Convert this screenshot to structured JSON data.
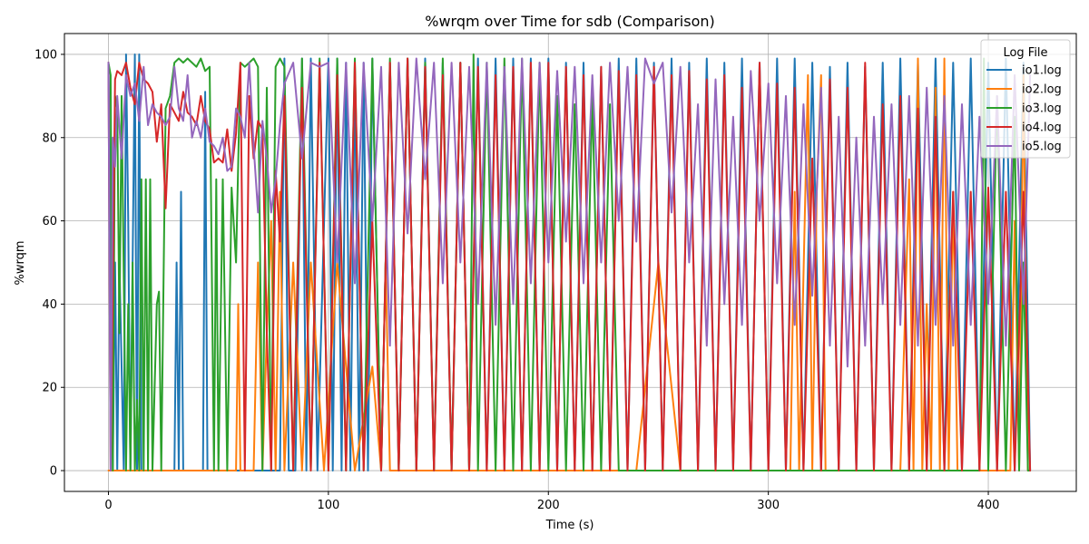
{
  "chart_data": {
    "type": "line",
    "title": "%wrqm over Time for sdb (Comparison)",
    "xlabel": "Time (s)",
    "ylabel": "%wrqm",
    "xlim": [
      -20,
      440
    ],
    "ylim": [
      -5,
      105
    ],
    "xticks": [
      0,
      100,
      200,
      300,
      400
    ],
    "yticks": [
      0,
      20,
      40,
      60,
      80,
      100
    ],
    "grid": true,
    "legend": {
      "title": "Log File",
      "placement": "top-right"
    },
    "series": [
      {
        "name": "io1.log",
        "color": "#1f77b4",
        "x": [
          0,
          2,
          3,
          4,
          5,
          7,
          8,
          9,
          10,
          12,
          13,
          14,
          15,
          16,
          20,
          25,
          30,
          31,
          32,
          33,
          34,
          40,
          43,
          44,
          45,
          46,
          50,
          60,
          65,
          70,
          72,
          75,
          78,
          80,
          82,
          85,
          88,
          90,
          92,
          95,
          100,
          102,
          104,
          106,
          108,
          110,
          112,
          114,
          116,
          118,
          120,
          124,
          128,
          132,
          136,
          140,
          144,
          148,
          152,
          156,
          160,
          164,
          168,
          172,
          176,
          180,
          184,
          188,
          192,
          196,
          200,
          204,
          208,
          212,
          216,
          220,
          224,
          228,
          232,
          236,
          240,
          244,
          248,
          252,
          256,
          260,
          264,
          268,
          272,
          276,
          280,
          284,
          288,
          292,
          296,
          300,
          304,
          308,
          312,
          316,
          320,
          324,
          328,
          332,
          336,
          340,
          344,
          348,
          352,
          356,
          360,
          364,
          368,
          372,
          376,
          380,
          384,
          388,
          392,
          396,
          400,
          404,
          408,
          412,
          416,
          419
        ],
        "y": [
          98,
          0,
          50,
          0,
          50,
          0,
          100,
          60,
          0,
          100,
          0,
          100,
          0,
          0,
          0,
          0,
          0,
          50,
          0,
          67,
          0,
          0,
          0,
          91,
          0,
          0,
          0,
          0,
          0,
          0,
          0,
          0,
          0,
          99,
          0,
          0,
          99,
          0,
          99,
          0,
          99,
          0,
          99,
          0,
          98,
          0,
          97,
          0,
          98,
          0,
          99,
          0,
          98,
          0,
          99,
          0,
          99,
          0,
          98,
          0,
          98,
          0,
          99,
          0,
          99,
          0,
          99,
          0,
          99,
          0,
          99,
          0,
          98,
          0,
          98,
          0,
          97,
          0,
          99,
          0,
          99,
          0,
          98,
          0,
          99,
          0,
          98,
          0,
          99,
          0,
          98,
          0,
          99,
          0,
          98,
          0,
          99,
          0,
          99,
          0,
          98,
          0,
          97,
          0,
          98,
          0,
          97,
          0,
          98,
          0,
          99,
          0,
          98,
          0,
          99,
          0,
          98,
          0,
          99,
          0,
          98,
          0,
          99,
          0,
          98,
          0
        ]
      },
      {
        "name": "io2.log",
        "color": "#ff7f0e",
        "x": [
          0,
          2,
          10,
          20,
          40,
          58,
          59,
          60,
          66,
          68,
          70,
          72,
          74,
          76,
          78,
          80,
          84,
          88,
          92,
          98,
          104,
          112,
          120,
          124,
          126,
          128,
          140,
          160,
          200,
          240,
          250,
          260,
          290,
          300,
          310,
          312,
          314,
          318,
          320,
          322,
          324,
          326,
          330,
          350,
          360,
          364,
          366,
          368,
          370,
          372,
          374,
          376,
          378,
          380,
          382,
          384,
          386,
          390,
          400,
          410,
          412,
          414,
          416,
          418,
          419
        ],
        "y": [
          0,
          0,
          0,
          0,
          0,
          0,
          40,
          0,
          0,
          50,
          0,
          33,
          60,
          0,
          67,
          0,
          50,
          0,
          50,
          0,
          50,
          0,
          25,
          0,
          50,
          0,
          0,
          0,
          0,
          0,
          50,
          0,
          0,
          0,
          0,
          67,
          0,
          95,
          0,
          67,
          95,
          0,
          0,
          0,
          0,
          70,
          0,
          99,
          0,
          40,
          0,
          92,
          0,
          99,
          0,
          67,
          0,
          0,
          0,
          0,
          60,
          0,
          95,
          0,
          0
        ]
      },
      {
        "name": "io3.log",
        "color": "#2ca02c",
        "x": [
          0,
          1,
          2,
          3,
          4,
          5,
          6,
          8,
          9,
          10,
          11,
          12,
          13,
          14,
          15,
          16,
          17,
          18,
          19,
          20,
          22,
          23,
          24,
          26,
          28,
          30,
          32,
          34,
          36,
          38,
          40,
          42,
          44,
          46,
          48,
          49,
          50,
          52,
          54,
          56,
          58,
          60,
          62,
          64,
          66,
          68,
          70,
          72,
          74,
          76,
          78,
          80,
          84,
          88,
          92,
          96,
          100,
          104,
          108,
          112,
          116,
          120,
          124,
          128,
          132,
          136,
          140,
          144,
          148,
          152,
          156,
          160,
          164,
          166,
          168,
          172,
          176,
          180,
          184,
          188,
          192,
          196,
          200,
          204,
          208,
          212,
          216,
          220,
          224,
          228,
          232,
          236,
          240,
          260,
          280,
          300,
          320,
          340,
          360,
          380,
          396,
          398,
          400,
          404,
          408,
          412,
          414,
          416,
          418,
          419
        ],
        "y": [
          98,
          95,
          0,
          90,
          87,
          33,
          90,
          0,
          40,
          0,
          50,
          0,
          17,
          0,
          70,
          0,
          70,
          0,
          70,
          0,
          40,
          43,
          0,
          87,
          90,
          98,
          99,
          98,
          99,
          98,
          97,
          99,
          96,
          97,
          0,
          70,
          0,
          70,
          0,
          68,
          50,
          98,
          97,
          98,
          99,
          97,
          0,
          92,
          0,
          97,
          99,
          97,
          0,
          99,
          0,
          99,
          0,
          99,
          0,
          99,
          0,
          99,
          0,
          99,
          0,
          99,
          0,
          98,
          0,
          99,
          0,
          98,
          0,
          100,
          0,
          98,
          0,
          99,
          0,
          99,
          0,
          98,
          0,
          90,
          0,
          88,
          0,
          90,
          0,
          88,
          0,
          0,
          0,
          0,
          0,
          0,
          0,
          0,
          0,
          0,
          0,
          99,
          0,
          90,
          0,
          85,
          0,
          50,
          0,
          0
        ]
      },
      {
        "name": "io4.log",
        "color": "#d62728",
        "x": [
          0,
          1,
          2,
          3,
          4,
          6,
          8,
          10,
          12,
          14,
          16,
          18,
          20,
          22,
          24,
          26,
          28,
          30,
          32,
          34,
          36,
          38,
          40,
          42,
          44,
          46,
          48,
          50,
          52,
          54,
          56,
          58,
          60,
          62,
          64,
          66,
          68,
          70,
          72,
          74,
          76,
          78,
          80,
          84,
          88,
          92,
          96,
          100,
          104,
          108,
          112,
          116,
          120,
          124,
          128,
          132,
          136,
          140,
          144,
          148,
          152,
          156,
          160,
          164,
          168,
          172,
          176,
          180,
          184,
          188,
          192,
          196,
          200,
          204,
          208,
          212,
          216,
          220,
          224,
          228,
          232,
          236,
          240,
          244,
          248,
          252,
          256,
          260,
          264,
          268,
          272,
          276,
          280,
          284,
          288,
          292,
          296,
          300,
          304,
          308,
          312,
          316,
          320,
          324,
          328,
          332,
          336,
          340,
          344,
          348,
          352,
          356,
          360,
          364,
          368,
          372,
          376,
          380,
          384,
          388,
          392,
          396,
          400,
          404,
          408,
          412,
          416,
          419
        ],
        "y": [
          98,
          0,
          43,
          94,
          96,
          95,
          98,
          92,
          88,
          98,
          94,
          93,
          91,
          79,
          88,
          63,
          88,
          86,
          84,
          91,
          86,
          85,
          83,
          90,
          84,
          82,
          74,
          75,
          74,
          82,
          72,
          81,
          98,
          0,
          90,
          75,
          84,
          82,
          33,
          0,
          72,
          55,
          90,
          0,
          92,
          0,
          98,
          0,
          95,
          0,
          98,
          0,
          60,
          0,
          98,
          0,
          99,
          0,
          97,
          0,
          95,
          0,
          98,
          0,
          97,
          0,
          95,
          0,
          97,
          0,
          98,
          0,
          98,
          0,
          97,
          0,
          95,
          0,
          97,
          0,
          96,
          0,
          95,
          0,
          97,
          0,
          95,
          0,
          96,
          0,
          94,
          0,
          95,
          0,
          92,
          0,
          98,
          0,
          93,
          0,
          92,
          0,
          75,
          0,
          94,
          0,
          92,
          0,
          98,
          0,
          88,
          0,
          90,
          0,
          87,
          0,
          85,
          0,
          67,
          0,
          67,
          0,
          68,
          0,
          67,
          0,
          67,
          0
        ]
      },
      {
        "name": "io5.log",
        "color": "#9467bd",
        "x": [
          0,
          1,
          2,
          3,
          4,
          6,
          8,
          10,
          12,
          14,
          16,
          18,
          20,
          22,
          24,
          26,
          28,
          30,
          32,
          34,
          36,
          38,
          40,
          42,
          44,
          46,
          48,
          50,
          52,
          54,
          56,
          58,
          60,
          62,
          64,
          66,
          68,
          70,
          72,
          74,
          76,
          78,
          80,
          84,
          88,
          92,
          96,
          100,
          104,
          108,
          112,
          116,
          120,
          124,
          128,
          132,
          136,
          140,
          144,
          148,
          152,
          156,
          160,
          164,
          168,
          172,
          176,
          180,
          184,
          188,
          192,
          196,
          200,
          204,
          208,
          212,
          216,
          220,
          224,
          228,
          232,
          236,
          240,
          244,
          248,
          252,
          256,
          260,
          264,
          268,
          272,
          276,
          280,
          284,
          288,
          292,
          296,
          300,
          304,
          308,
          312,
          316,
          320,
          324,
          328,
          332,
          336,
          340,
          344,
          348,
          352,
          356,
          360,
          364,
          368,
          372,
          376,
          380,
          384,
          388,
          392,
          396,
          400,
          404,
          408,
          412,
          416,
          419
        ],
        "y": [
          98,
          0,
          80,
          73,
          90,
          75,
          95,
          90,
          93,
          84,
          97,
          83,
          88,
          86,
          85,
          83,
          85,
          97,
          87,
          84,
          95,
          80,
          84,
          80,
          87,
          79,
          78,
          76,
          80,
          72,
          73,
          87,
          85,
          80,
          98,
          78,
          62,
          84,
          75,
          62,
          70,
          83,
          93,
          98,
          75,
          98,
          97,
          98,
          50,
          98,
          45,
          98,
          60,
          97,
          30,
          98,
          57,
          99,
          70,
          98,
          45,
          98,
          50,
          97,
          40,
          98,
          35,
          97,
          40,
          99,
          45,
          98,
          50,
          96,
          55,
          97,
          45,
          95,
          50,
          98,
          60,
          97,
          55,
          99,
          93,
          98,
          62,
          97,
          50,
          88,
          30,
          94,
          40,
          85,
          35,
          96,
          60,
          93,
          45,
          90,
          35,
          88,
          42,
          92,
          30,
          85,
          25,
          80,
          30,
          85,
          40,
          88,
          35,
          90,
          30,
          92,
          35,
          90,
          30,
          88,
          35,
          85,
          40,
          90,
          30,
          95,
          40,
          95
        ]
      }
    ]
  }
}
